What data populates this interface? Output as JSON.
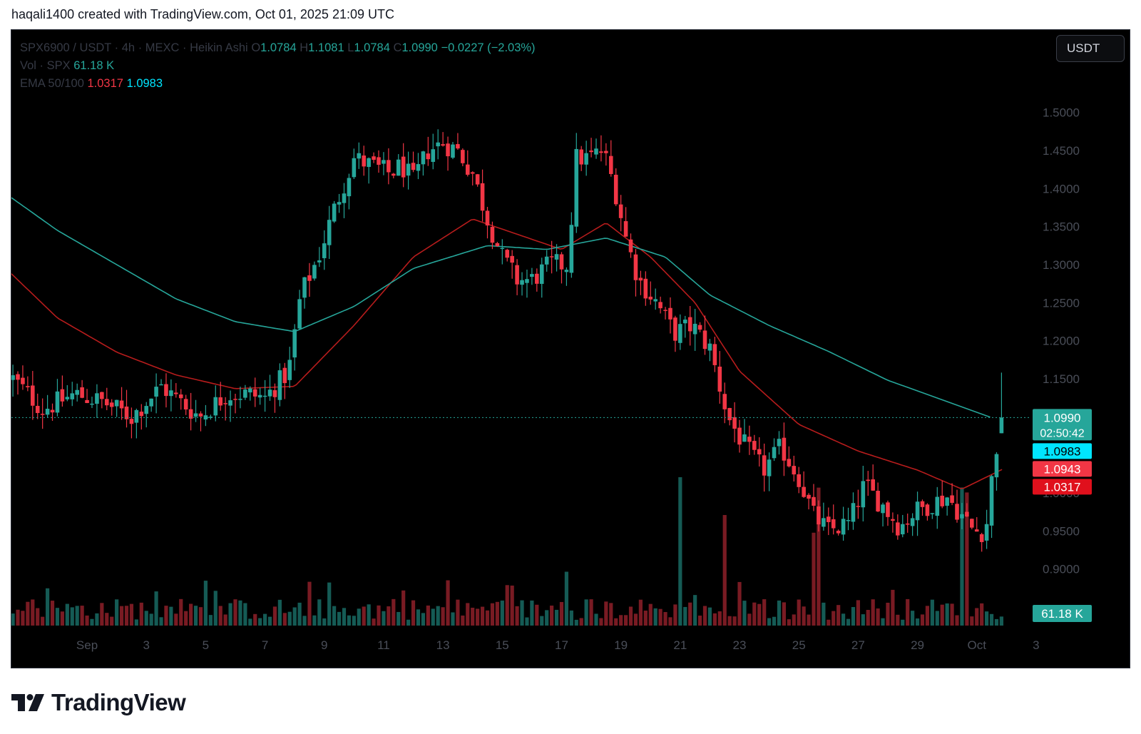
{
  "attribution": "haqali1400 created with TradingView.com, Oct 01, 2025 21:09 UTC",
  "brand": {
    "name": "TradingView",
    "logo_icon": "tradingview-logo-icon"
  },
  "header": {
    "symbol": "SPX6900 / USDT · 4h · MEXC · Heikin Ashi",
    "o_label": "O",
    "o_value": "1.0784",
    "h_label": "H",
    "h_value": "1.1081",
    "l_label": "L",
    "l_value": "1.0784",
    "c_label": "C",
    "c_value": "1.0990",
    "change": "−0.0227 (−2.03%)",
    "vol_label": "Vol · SPX",
    "vol_value": "61.18 K",
    "ema_label": "EMA 50/100",
    "ema50_value": "1.0317",
    "ema100_value": "1.0983"
  },
  "currency_button": "USDT",
  "colors": {
    "up": "#26a69a",
    "down": "#f23645",
    "ema50": "#b71c1c",
    "ema100": "#26a69a",
    "badge_cyan": "#00e5ff",
    "background": "#000000"
  },
  "chart_data": {
    "type": "candlestick",
    "style": "Heikin Ashi",
    "interval": "4h",
    "ylim": [
      0.865,
      1.525
    ],
    "y_ticks": [
      "1.5000",
      "1.4500",
      "1.4000",
      "1.3500",
      "1.3000",
      "1.2500",
      "1.2000",
      "1.1500",
      "1.0000",
      "0.9500",
      "0.9000"
    ],
    "y_tick_values": [
      1.5,
      1.45,
      1.4,
      1.35,
      1.3,
      1.25,
      1.2,
      1.15,
      1.0,
      0.95,
      0.9
    ],
    "x_ticks": [
      "Sep",
      "3",
      "5",
      "7",
      "9",
      "11",
      "13",
      "15",
      "17",
      "19",
      "21",
      "23",
      "25",
      "27",
      "29",
      "Oct",
      "3"
    ],
    "x_tick_days": [
      1,
      3,
      5,
      7,
      9,
      11,
      13,
      15,
      17,
      19,
      21,
      23,
      25,
      27,
      29,
      31,
      33
    ],
    "x_range_days": [
      -1.55,
      36.2
    ],
    "price_path": [
      [
        -1.5,
        1.15
      ],
      [
        -0.5,
        1.11
      ],
      [
        0.6,
        1.13
      ],
      [
        1.5,
        1.12
      ],
      [
        2.5,
        1.1
      ],
      [
        3.5,
        1.14
      ],
      [
        4.3,
        1.115
      ],
      [
        4.8,
        1.1
      ],
      [
        5.7,
        1.13
      ],
      [
        6.4,
        1.13
      ],
      [
        7.0,
        1.125
      ],
      [
        7.8,
        1.16
      ],
      [
        8.2,
        1.26
      ],
      [
        8.8,
        1.31
      ],
      [
        9.4,
        1.38
      ],
      [
        10.0,
        1.44
      ],
      [
        10.6,
        1.43
      ],
      [
        11.2,
        1.42
      ],
      [
        11.6,
        1.43
      ],
      [
        12.0,
        1.41
      ],
      [
        12.5,
        1.45
      ],
      [
        13.0,
        1.46
      ],
      [
        13.5,
        1.45
      ],
      [
        14.0,
        1.42
      ],
      [
        14.5,
        1.36
      ],
      [
        15.0,
        1.31
      ],
      [
        15.5,
        1.28
      ],
      [
        16.0,
        1.28
      ],
      [
        16.6,
        1.3
      ],
      [
        17.2,
        1.3
      ],
      [
        17.5,
        1.44
      ],
      [
        17.9,
        1.44
      ],
      [
        18.4,
        1.45
      ],
      [
        18.8,
        1.4
      ],
      [
        19.2,
        1.33
      ],
      [
        19.6,
        1.28
      ],
      [
        20.2,
        1.25
      ],
      [
        20.8,
        1.21
      ],
      [
        21.4,
        1.22
      ],
      [
        22.0,
        1.19
      ],
      [
        22.6,
        1.1
      ],
      [
        23.2,
        1.06
      ],
      [
        23.8,
        1.03
      ],
      [
        24.4,
        1.06
      ],
      [
        25.0,
        1.02
      ],
      [
        25.5,
        0.97
      ],
      [
        26.0,
        0.95
      ],
      [
        26.7,
        0.96
      ],
      [
        27.2,
        1.01
      ],
      [
        27.8,
        0.985
      ],
      [
        28.4,
        0.955
      ],
      [
        28.9,
        0.975
      ],
      [
        29.4,
        0.985
      ],
      [
        30.0,
        0.995
      ],
      [
        30.5,
        0.97
      ],
      [
        30.9,
        0.95
      ],
      [
        31.3,
        0.95
      ],
      [
        31.6,
        1.05
      ],
      [
        31.9,
        1.099
      ]
    ],
    "ema100_path": [
      [
        -1.55,
        1.388
      ],
      [
        0,
        1.345
      ],
      [
        2,
        1.3
      ],
      [
        4,
        1.255
      ],
      [
        6,
        1.225
      ],
      [
        8,
        1.212
      ],
      [
        10,
        1.245
      ],
      [
        12,
        1.295
      ],
      [
        14.5,
        1.325
      ],
      [
        16.5,
        1.32
      ],
      [
        18.5,
        1.335
      ],
      [
        20.5,
        1.31
      ],
      [
        22,
        1.26
      ],
      [
        24,
        1.22
      ],
      [
        26,
        1.186
      ],
      [
        28,
        1.148
      ],
      [
        30,
        1.12
      ],
      [
        31.5,
        1.099
      ]
    ],
    "ema50_path": [
      [
        -1.55,
        1.288
      ],
      [
        0,
        1.23
      ],
      [
        2,
        1.185
      ],
      [
        4,
        1.155
      ],
      [
        6,
        1.137
      ],
      [
        8,
        1.14
      ],
      [
        10,
        1.22
      ],
      [
        12,
        1.31
      ],
      [
        14,
        1.36
      ],
      [
        15.5,
        1.34
      ],
      [
        17,
        1.32
      ],
      [
        18.5,
        1.355
      ],
      [
        20,
        1.31
      ],
      [
        21.5,
        1.25
      ],
      [
        23,
        1.16
      ],
      [
        25,
        1.09
      ],
      [
        27,
        1.055
      ],
      [
        29,
        1.03
      ],
      [
        30.5,
        1.005
      ],
      [
        31.9,
        1.0317
      ]
    ],
    "volume_spikes_at_days": [
      21.0,
      22.5,
      25.6,
      30.6
    ],
    "price_badges": [
      {
        "value": "1.0990",
        "sub": "02:50:42",
        "color": "#26a69a",
        "text_color": "#ffffff"
      },
      {
        "value": "1.0983",
        "color": "#00e5ff",
        "text_color": "#000000"
      },
      {
        "value": "1.0943",
        "color": "#f23645",
        "text_color": "#ffffff"
      },
      {
        "value": "1.0317",
        "color": "#e0101c",
        "text_color": "#ffffff"
      }
    ],
    "volume_badge": {
      "value": "61.18 K",
      "color": "#26a69a"
    },
    "current_price": 1.099,
    "grid": false
  }
}
